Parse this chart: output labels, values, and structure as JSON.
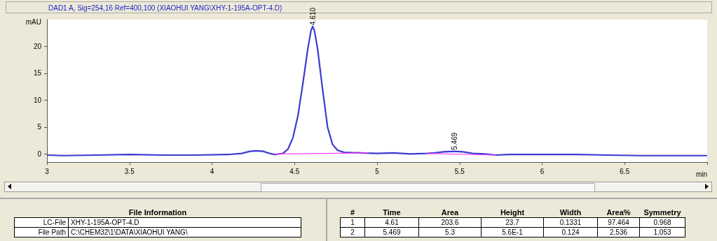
{
  "chart_data": {
    "type": "line",
    "title": "DAD1 A, Sig=254,16 Ref=400,100 (XIAOHUI YANG\\XHY-1-195A-OPT-4.D)",
    "xlabel": "min",
    "ylabel": "mAU",
    "xlim": [
      3,
      7
    ],
    "xticks": [
      3,
      3.5,
      4,
      4.5,
      5,
      5.5,
      6,
      6.5,
      {
        "value": 7,
        "label": null
      }
    ],
    "ylim": [
      -1.5,
      25
    ],
    "yticks": [
      0,
      5,
      10,
      15,
      20
    ],
    "grid": false,
    "marker": "none",
    "line_style": "solid",
    "series": [
      {
        "color": "#3b3bd0",
        "x": [
          3,
          3.1,
          3.3,
          3.5,
          3.7,
          3.9,
          4.1,
          4.18,
          4.23,
          4.27,
          4.31,
          4.35,
          4.38,
          4.43,
          4.46,
          4.49,
          4.52,
          4.55,
          4.58,
          4.6,
          4.61,
          4.62,
          4.64,
          4.67,
          4.7,
          4.73,
          4.76,
          4.8,
          4.9,
          5,
          5.1,
          5.2,
          5.3,
          5.35,
          5.4,
          5.469,
          5.52,
          5.58,
          5.65,
          5.72,
          5.8,
          6,
          6.2,
          6.4,
          6.6,
          6.8,
          7
        ],
        "values": [
          -0.2,
          -0.3,
          -0.2,
          -0.1,
          -0.2,
          -0.2,
          -0.1,
          0.1,
          0.5,
          0.6,
          0.5,
          0.1,
          -0.1,
          0.1,
          0.9,
          3,
          7,
          13,
          19.5,
          23,
          23.7,
          23,
          19.5,
          12,
          5,
          1.8,
          0.7,
          0.3,
          0.2,
          0.1,
          0.2,
          0,
          0.1,
          0.2,
          0.4,
          0.5,
          0.4,
          0.1,
          0,
          -0.2,
          -0.1,
          -0.1,
          -0.1,
          -0.2,
          -0.3,
          -0.3,
          -0.3
        ]
      },
      {
        "color": "#ff40ff",
        "x": [
          4.38,
          4.95,
          5.1,
          5.3,
          5.72
        ],
        "values": [
          0,
          0.2,
          null,
          0.1,
          -0.2
        ]
      }
    ],
    "annotations": [
      {
        "text": "4.610",
        "x": 4.61,
        "y": 23.7
      },
      {
        "text": "5.469",
        "x": 5.469,
        "y": 0.5
      },
      "File Information",
      "LC-File",
      "XHY-1-195A-OPT-4.D",
      "File Path",
      "C:\\CHEM32\\1\\DATA\\XIAOHUI YANG\\",
      "#",
      "Time",
      "Area",
      "Height",
      "Width",
      "Area%",
      "Symmetry",
      "1",
      "4.61",
      "203.6",
      "23.7",
      "0.1331",
      "97.464",
      "0.968",
      "2",
      "5.469",
      "5.3",
      "5.6E-1",
      "0.124",
      "2.536",
      "1.053"
    ]
  }
}
